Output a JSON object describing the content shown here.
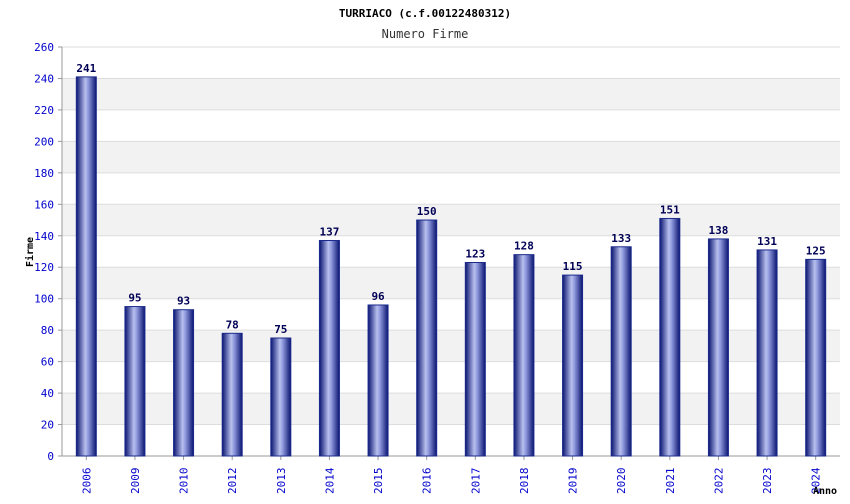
{
  "chart_data": {
    "type": "bar",
    "title": "TURRIACO (c.f.00122480312)",
    "subtitle": "Numero Firme",
    "xlabel": "Anno",
    "ylabel": "Firme",
    "categories": [
      "2006",
      "2009",
      "2010",
      "2012",
      "2013",
      "2014",
      "2015",
      "2016",
      "2017",
      "2018",
      "2019",
      "2020",
      "2021",
      "2022",
      "2023",
      "2024"
    ],
    "values": [
      241,
      95,
      93,
      78,
      75,
      137,
      96,
      150,
      123,
      128,
      115,
      133,
      151,
      138,
      131,
      125
    ],
    "ylim": [
      0,
      260
    ],
    "yticks": [
      0,
      20,
      40,
      60,
      80,
      100,
      120,
      140,
      160,
      180,
      200,
      220,
      240,
      260
    ],
    "grid": true,
    "bar_color": "#1a2a8c",
    "tick_label_color": "#0000cc",
    "value_label_color": "#000055"
  }
}
